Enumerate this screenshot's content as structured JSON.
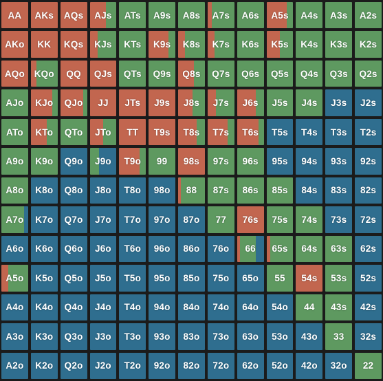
{
  "colors": {
    "raise": "#c2664f",
    "call": "#5e9960",
    "fold": "#2f6e8f"
  },
  "rows": [
    [
      {
        "label": "AA",
        "mix": [
          1,
          0,
          0
        ]
      },
      {
        "label": "AKs",
        "mix": [
          1,
          0,
          0
        ]
      },
      {
        "label": "AQs",
        "mix": [
          1,
          0,
          0
        ]
      },
      {
        "label": "AJs",
        "mix": [
          0.6,
          0.4,
          0
        ]
      },
      {
        "label": "ATs",
        "mix": [
          0,
          1,
          0
        ]
      },
      {
        "label": "A9s",
        "mix": [
          0,
          1,
          0
        ]
      },
      {
        "label": "A8s",
        "mix": [
          0,
          1,
          0
        ]
      },
      {
        "label": "A7s",
        "mix": [
          0.15,
          0.85,
          0
        ]
      },
      {
        "label": "A6s",
        "mix": [
          0,
          1,
          0
        ]
      },
      {
        "label": "A5s",
        "mix": [
          0.75,
          0.25,
          0
        ]
      },
      {
        "label": "A4s",
        "mix": [
          0,
          1,
          0
        ]
      },
      {
        "label": "A3s",
        "mix": [
          0,
          1,
          0
        ]
      },
      {
        "label": "A2s",
        "mix": [
          0,
          1,
          0
        ]
      }
    ],
    [
      {
        "label": "AKo",
        "mix": [
          1,
          0,
          0
        ]
      },
      {
        "label": "KK",
        "mix": [
          1,
          0,
          0
        ]
      },
      {
        "label": "KQs",
        "mix": [
          1,
          0,
          0
        ]
      },
      {
        "label": "KJs",
        "mix": [
          0.3,
          0.7,
          0
        ]
      },
      {
        "label": "KTs",
        "mix": [
          0,
          1,
          0
        ]
      },
      {
        "label": "K9s",
        "mix": [
          0.75,
          0.25,
          0
        ]
      },
      {
        "label": "K8s",
        "mix": [
          0.25,
          0.75,
          0
        ]
      },
      {
        "label": "K7s",
        "mix": [
          0.25,
          0.75,
          0
        ]
      },
      {
        "label": "K6s",
        "mix": [
          0,
          1,
          0
        ]
      },
      {
        "label": "K5s",
        "mix": [
          0.5,
          0.5,
          0
        ]
      },
      {
        "label": "K4s",
        "mix": [
          0,
          1,
          0
        ]
      },
      {
        "label": "K3s",
        "mix": [
          0,
          1,
          0
        ]
      },
      {
        "label": "K2s",
        "mix": [
          0,
          1,
          0
        ]
      }
    ],
    [
      {
        "label": "AQo",
        "mix": [
          1,
          0,
          0
        ]
      },
      {
        "label": "KQo",
        "mix": [
          0.2,
          0.8,
          0
        ]
      },
      {
        "label": "QQ",
        "mix": [
          1,
          0,
          0
        ]
      },
      {
        "label": "QJs",
        "mix": [
          1,
          0,
          0
        ]
      },
      {
        "label": "QTs",
        "mix": [
          0,
          1,
          0
        ]
      },
      {
        "label": "Q9s",
        "mix": [
          0,
          1,
          0
        ]
      },
      {
        "label": "Q8s",
        "mix": [
          0.6,
          0.4,
          0
        ]
      },
      {
        "label": "Q7s",
        "mix": [
          0,
          1,
          0
        ]
      },
      {
        "label": "Q6s",
        "mix": [
          0,
          1,
          0
        ]
      },
      {
        "label": "Q5s",
        "mix": [
          0,
          1,
          0
        ]
      },
      {
        "label": "Q4s",
        "mix": [
          0,
          1,
          0
        ]
      },
      {
        "label": "Q3s",
        "mix": [
          0,
          1,
          0
        ]
      },
      {
        "label": "Q2s",
        "mix": [
          0,
          1,
          0
        ]
      }
    ],
    [
      {
        "label": "AJo",
        "mix": [
          0,
          1,
          0
        ]
      },
      {
        "label": "KJo",
        "mix": [
          0.8,
          0.2,
          0
        ]
      },
      {
        "label": "QJo",
        "mix": [
          0.85,
          0.15,
          0
        ]
      },
      {
        "label": "JJ",
        "mix": [
          1,
          0,
          0
        ]
      },
      {
        "label": "JTs",
        "mix": [
          1,
          0,
          0
        ]
      },
      {
        "label": "J9s",
        "mix": [
          1,
          0,
          0
        ]
      },
      {
        "label": "J8s",
        "mix": [
          0.55,
          0.45,
          0
        ]
      },
      {
        "label": "J7s",
        "mix": [
          0.3,
          0.7,
          0
        ]
      },
      {
        "label": "J6s",
        "mix": [
          0.7,
          0.3,
          0
        ]
      },
      {
        "label": "J5s",
        "mix": [
          0,
          1,
          0
        ]
      },
      {
        "label": "J4s",
        "mix": [
          0,
          1,
          0
        ]
      },
      {
        "label": "J3s",
        "mix": [
          0,
          0,
          1
        ]
      },
      {
        "label": "J2s",
        "mix": [
          0,
          0,
          1
        ]
      }
    ],
    [
      {
        "label": "ATo",
        "mix": [
          0,
          1,
          0
        ]
      },
      {
        "label": "KTo",
        "mix": [
          0.6,
          0.4,
          0
        ]
      },
      {
        "label": "QTo",
        "mix": [
          0,
          1,
          0
        ]
      },
      {
        "label": "JTo",
        "mix": [
          0.5,
          0.5,
          0
        ]
      },
      {
        "label": "TT",
        "mix": [
          1,
          0,
          0
        ]
      },
      {
        "label": "T9s",
        "mix": [
          1,
          0,
          0
        ]
      },
      {
        "label": "T8s",
        "mix": [
          0.7,
          0.3,
          0
        ]
      },
      {
        "label": "T7s",
        "mix": [
          0.75,
          0.25,
          0
        ]
      },
      {
        "label": "T6s",
        "mix": [
          0.8,
          0.2,
          0
        ]
      },
      {
        "label": "T5s",
        "mix": [
          0,
          0,
          1
        ]
      },
      {
        "label": "T4s",
        "mix": [
          0,
          0,
          1
        ]
      },
      {
        "label": "T3s",
        "mix": [
          0,
          0,
          1
        ]
      },
      {
        "label": "T2s",
        "mix": [
          0,
          0,
          1
        ]
      }
    ],
    [
      {
        "label": "A9o",
        "mix": [
          0,
          1,
          0
        ]
      },
      {
        "label": "K9o",
        "mix": [
          0,
          1,
          0
        ]
      },
      {
        "label": "Q9o",
        "mix": [
          0,
          0,
          1
        ]
      },
      {
        "label": "J9o",
        "mix": [
          0,
          0.35,
          0.65
        ]
      },
      {
        "label": "T9o",
        "mix": [
          0.75,
          0.25,
          0
        ]
      },
      {
        "label": "99",
        "mix": [
          0,
          1,
          0
        ]
      },
      {
        "label": "98s",
        "mix": [
          1,
          0,
          0
        ]
      },
      {
        "label": "97s",
        "mix": [
          0,
          1,
          0
        ]
      },
      {
        "label": "96s",
        "mix": [
          0,
          1,
          0
        ]
      },
      {
        "label": "95s",
        "mix": [
          0,
          0,
          1
        ]
      },
      {
        "label": "94s",
        "mix": [
          0,
          0,
          1
        ]
      },
      {
        "label": "93s",
        "mix": [
          0,
          0,
          1
        ]
      },
      {
        "label": "92s",
        "mix": [
          0,
          0,
          1
        ]
      }
    ],
    [
      {
        "label": "A8o",
        "mix": [
          0,
          1,
          0
        ]
      },
      {
        "label": "K8o",
        "mix": [
          0,
          0,
          1
        ]
      },
      {
        "label": "Q8o",
        "mix": [
          0,
          0,
          1
        ]
      },
      {
        "label": "J8o",
        "mix": [
          0,
          0,
          1
        ]
      },
      {
        "label": "T8o",
        "mix": [
          0,
          0,
          1
        ]
      },
      {
        "label": "98o",
        "mix": [
          0,
          0,
          1
        ]
      },
      {
        "label": "88",
        "mix": [
          0.1,
          0.9,
          0
        ]
      },
      {
        "label": "87s",
        "mix": [
          0,
          1,
          0
        ]
      },
      {
        "label": "86s",
        "mix": [
          0,
          1,
          0
        ]
      },
      {
        "label": "85s",
        "mix": [
          0,
          1,
          0
        ]
      },
      {
        "label": "84s",
        "mix": [
          0,
          0,
          1
        ]
      },
      {
        "label": "83s",
        "mix": [
          0,
          0,
          1
        ]
      },
      {
        "label": "82s",
        "mix": [
          0,
          0,
          1
        ]
      }
    ],
    [
      {
        "label": "A7o",
        "mix": [
          0,
          0.85,
          0.15
        ]
      },
      {
        "label": "K7o",
        "mix": [
          0,
          0,
          1
        ]
      },
      {
        "label": "Q7o",
        "mix": [
          0,
          0,
          1
        ]
      },
      {
        "label": "J7o",
        "mix": [
          0,
          0,
          1
        ]
      },
      {
        "label": "T7o",
        "mix": [
          0,
          0,
          1
        ]
      },
      {
        "label": "97o",
        "mix": [
          0,
          0,
          1
        ]
      },
      {
        "label": "87o",
        "mix": [
          0,
          0,
          1
        ]
      },
      {
        "label": "77",
        "mix": [
          0,
          1,
          0
        ]
      },
      {
        "label": "76s",
        "mix": [
          1,
          0,
          0
        ]
      },
      {
        "label": "75s",
        "mix": [
          0,
          1,
          0
        ]
      },
      {
        "label": "74s",
        "mix": [
          0,
          1,
          0
        ]
      },
      {
        "label": "73s",
        "mix": [
          0,
          0,
          1
        ]
      },
      {
        "label": "72s",
        "mix": [
          0,
          0,
          1
        ]
      }
    ],
    [
      {
        "label": "A6o",
        "mix": [
          0,
          0,
          1
        ]
      },
      {
        "label": "K6o",
        "mix": [
          0,
          0,
          1
        ]
      },
      {
        "label": "Q6o",
        "mix": [
          0,
          0,
          1
        ]
      },
      {
        "label": "J6o",
        "mix": [
          0,
          0,
          1
        ]
      },
      {
        "label": "T6o",
        "mix": [
          0,
          0,
          1
        ]
      },
      {
        "label": "96o",
        "mix": [
          0,
          0,
          1
        ]
      },
      {
        "label": "86o",
        "mix": [
          0,
          0,
          1
        ]
      },
      {
        "label": "76o",
        "mix": [
          0,
          0,
          1
        ]
      },
      {
        "label": "66",
        "mix": [
          0.1,
          0.6,
          0.3
        ]
      },
      {
        "label": "65s",
        "mix": [
          0.15,
          0.85,
          0
        ]
      },
      {
        "label": "64s",
        "mix": [
          0,
          1,
          0
        ]
      },
      {
        "label": "63s",
        "mix": [
          0,
          1,
          0
        ]
      },
      {
        "label": "62s",
        "mix": [
          0,
          0,
          1
        ]
      }
    ],
    [
      {
        "label": "A5o",
        "mix": [
          0.25,
          0.75,
          0
        ]
      },
      {
        "label": "K5o",
        "mix": [
          0,
          0,
          1
        ]
      },
      {
        "label": "Q5o",
        "mix": [
          0,
          0,
          1
        ]
      },
      {
        "label": "J5o",
        "mix": [
          0,
          0,
          1
        ]
      },
      {
        "label": "T5o",
        "mix": [
          0,
          0,
          1
        ]
      },
      {
        "label": "95o",
        "mix": [
          0,
          0,
          1
        ]
      },
      {
        "label": "85o",
        "mix": [
          0,
          0,
          1
        ]
      },
      {
        "label": "75o",
        "mix": [
          0,
          0,
          1
        ]
      },
      {
        "label": "65o",
        "mix": [
          0,
          0,
          1
        ]
      },
      {
        "label": "55",
        "mix": [
          0,
          1,
          0
        ]
      },
      {
        "label": "54s",
        "mix": [
          1,
          0,
          0
        ]
      },
      {
        "label": "53s",
        "mix": [
          0,
          1,
          0
        ]
      },
      {
        "label": "52s",
        "mix": [
          0,
          0,
          1
        ]
      }
    ],
    [
      {
        "label": "A4o",
        "mix": [
          0,
          0,
          1
        ]
      },
      {
        "label": "K4o",
        "mix": [
          0,
          0,
          1
        ]
      },
      {
        "label": "Q4o",
        "mix": [
          0,
          0,
          1
        ]
      },
      {
        "label": "J4o",
        "mix": [
          0,
          0,
          1
        ]
      },
      {
        "label": "T4o",
        "mix": [
          0,
          0,
          1
        ]
      },
      {
        "label": "94o",
        "mix": [
          0,
          0,
          1
        ]
      },
      {
        "label": "84o",
        "mix": [
          0,
          0,
          1
        ]
      },
      {
        "label": "74o",
        "mix": [
          0,
          0,
          1
        ]
      },
      {
        "label": "64o",
        "mix": [
          0,
          0,
          1
        ]
      },
      {
        "label": "54o",
        "mix": [
          0,
          0,
          1
        ]
      },
      {
        "label": "44",
        "mix": [
          0,
          1,
          0
        ]
      },
      {
        "label": "43s",
        "mix": [
          0,
          1,
          0
        ]
      },
      {
        "label": "42s",
        "mix": [
          0,
          0,
          1
        ]
      }
    ],
    [
      {
        "label": "A3o",
        "mix": [
          0,
          0,
          1
        ]
      },
      {
        "label": "K3o",
        "mix": [
          0,
          0,
          1
        ]
      },
      {
        "label": "Q3o",
        "mix": [
          0,
          0,
          1
        ]
      },
      {
        "label": "J3o",
        "mix": [
          0,
          0,
          1
        ]
      },
      {
        "label": "T3o",
        "mix": [
          0,
          0,
          1
        ]
      },
      {
        "label": "93o",
        "mix": [
          0,
          0,
          1
        ]
      },
      {
        "label": "83o",
        "mix": [
          0,
          0,
          1
        ]
      },
      {
        "label": "73o",
        "mix": [
          0,
          0,
          1
        ]
      },
      {
        "label": "63o",
        "mix": [
          0,
          0,
          1
        ]
      },
      {
        "label": "53o",
        "mix": [
          0,
          0,
          1
        ]
      },
      {
        "label": "43o",
        "mix": [
          0,
          0,
          1
        ]
      },
      {
        "label": "33",
        "mix": [
          0,
          1,
          0
        ]
      },
      {
        "label": "32s",
        "mix": [
          0,
          0,
          1
        ]
      }
    ],
    [
      {
        "label": "A2o",
        "mix": [
          0,
          0,
          1
        ]
      },
      {
        "label": "K2o",
        "mix": [
          0,
          0,
          1
        ]
      },
      {
        "label": "Q2o",
        "mix": [
          0,
          0,
          1
        ]
      },
      {
        "label": "J2o",
        "mix": [
          0,
          0,
          1
        ]
      },
      {
        "label": "T2o",
        "mix": [
          0,
          0,
          1
        ]
      },
      {
        "label": "92o",
        "mix": [
          0,
          0,
          1
        ]
      },
      {
        "label": "82o",
        "mix": [
          0,
          0,
          1
        ]
      },
      {
        "label": "72o",
        "mix": [
          0,
          0,
          1
        ]
      },
      {
        "label": "62o",
        "mix": [
          0,
          0,
          1
        ]
      },
      {
        "label": "52o",
        "mix": [
          0,
          0,
          1
        ]
      },
      {
        "label": "42o",
        "mix": [
          0,
          0,
          1
        ]
      },
      {
        "label": "32o",
        "mix": [
          0,
          0,
          1
        ]
      },
      {
        "label": "22",
        "mix": [
          0,
          1,
          0
        ]
      }
    ]
  ]
}
